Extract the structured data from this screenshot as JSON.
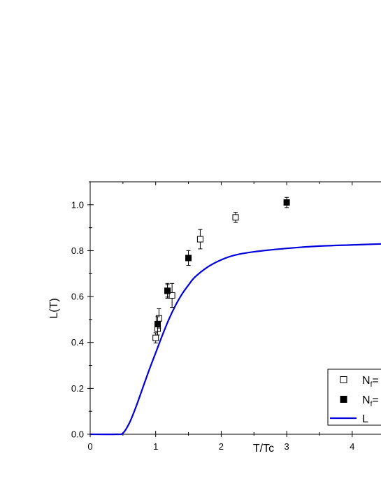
{
  "chart_data": {
    "type": "scatter",
    "title": "",
    "xlabel": "T/Tc",
    "ylabel": "L(T)",
    "xlim": [
      0,
      4.5
    ],
    "ylim": [
      0,
      1.1
    ],
    "x_ticks": [
      0,
      1,
      2,
      3,
      4
    ],
    "x_tick_labels": [
      "0",
      "1",
      "2",
      "3",
      "4"
    ],
    "y_ticks": [
      0.0,
      0.2,
      0.4,
      0.6,
      0.8,
      1.0
    ],
    "y_tick_labels": [
      "0.0",
      "0.2",
      "0.4",
      "0.6",
      "0.8",
      "1.0"
    ],
    "grid": false,
    "legend_placement": "bottom-right",
    "series": [
      {
        "name_main": "N",
        "name_sub": "f",
        "name_rest": "=",
        "marker": "open-square",
        "color": "#000000",
        "points": [
          {
            "x": 1.0,
            "y": 0.42,
            "err": 0.01
          },
          {
            "x": 1.03,
            "y": 0.46,
            "err": 0.015
          },
          {
            "x": 1.05,
            "y": 0.505,
            "err": 0.03
          },
          {
            "x": 1.18,
            "y": 0.625,
            "err": 0.02
          },
          {
            "x": 1.25,
            "y": 0.605,
            "err": 0.04
          },
          {
            "x": 1.68,
            "y": 0.85,
            "err": 0.03
          },
          {
            "x": 2.22,
            "y": 0.945,
            "err": 0.01
          }
        ]
      },
      {
        "name_main": "N",
        "name_sub": "f",
        "name_rest": "=",
        "marker": "filled-square",
        "color": "#000000",
        "points": [
          {
            "x": 1.03,
            "y": 0.48,
            "err": 0.02
          },
          {
            "x": 1.18,
            "y": 0.625,
            "err": 0.015
          },
          {
            "x": 1.5,
            "y": 0.768,
            "err": 0.02
          },
          {
            "x": 3.0,
            "y": 1.01,
            "err": 0.01
          }
        ]
      },
      {
        "name_main": "L",
        "name_sub": "",
        "name_rest": "",
        "marker": "line",
        "color": "#0000dd",
        "x": [
          0,
          0.4,
          0.5,
          0.6,
          0.7,
          0.8,
          0.9,
          1.0,
          1.1,
          1.2,
          1.3,
          1.4,
          1.5,
          1.6,
          1.8,
          2.0,
          2.2,
          2.5,
          3.0,
          3.5,
          4.0,
          4.5
        ],
        "y": [
          0,
          0,
          0.005,
          0.05,
          0.12,
          0.2,
          0.28,
          0.355,
          0.43,
          0.5,
          0.56,
          0.61,
          0.65,
          0.685,
          0.73,
          0.76,
          0.78,
          0.795,
          0.81,
          0.82,
          0.825,
          0.83
        ]
      }
    ]
  }
}
